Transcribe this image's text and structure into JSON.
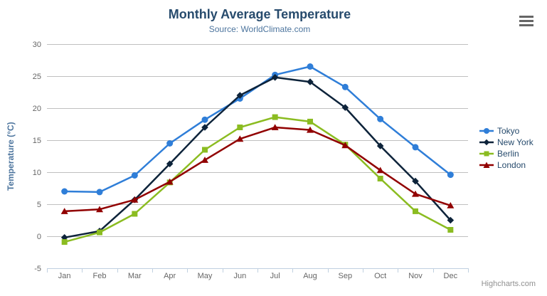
{
  "chart": {
    "credits": "Highcharts.com",
    "menu_icon": "hamburger-icon"
  },
  "theme": {
    "background": "#ffffff",
    "title_color": "#274b6d",
    "subtitle_color": "#4d759e",
    "axis_label_color": "#666666",
    "axis_title_color": "#4d759e",
    "legend_text_color": "#274b6d",
    "grid_color": "#c0c0c0",
    "axis_line_color": "#c0d0e0",
    "credits_color": "#909090",
    "menu_icon_color": "#666666"
  },
  "chart_data": {
    "type": "line",
    "title": "Monthly Average Temperature",
    "subtitle": "Source: WorldClimate.com",
    "categories": [
      "Jan",
      "Feb",
      "Mar",
      "Apr",
      "May",
      "Jun",
      "Jul",
      "Aug",
      "Sep",
      "Oct",
      "Nov",
      "Dec"
    ],
    "series": [
      {
        "name": "Tokyo",
        "color": "#2f7ed8",
        "marker": "circle",
        "values": [
          7.0,
          6.9,
          9.5,
          14.5,
          18.2,
          21.5,
          25.2,
          26.5,
          23.3,
          18.3,
          13.9,
          9.6
        ]
      },
      {
        "name": "New York",
        "color": "#0d233a",
        "marker": "diamond",
        "values": [
          -0.2,
          0.8,
          5.7,
          11.3,
          17.0,
          22.0,
          24.8,
          24.1,
          20.1,
          14.1,
          8.6,
          2.5
        ]
      },
      {
        "name": "Berlin",
        "color": "#8bbc21",
        "marker": "square",
        "values": [
          -0.9,
          0.6,
          3.5,
          8.4,
          13.5,
          17.0,
          18.6,
          17.9,
          14.3,
          9.0,
          3.9,
          1.0
        ]
      },
      {
        "name": "London",
        "color": "#910000",
        "marker": "triangle",
        "values": [
          3.9,
          4.2,
          5.7,
          8.5,
          11.9,
          15.2,
          17.0,
          16.6,
          14.2,
          10.3,
          6.6,
          4.8
        ]
      }
    ],
    "xlabel": "",
    "ylabel": "Temperature (°C)",
    "ylim": [
      -5,
      30
    ],
    "ytick_interval": 5,
    "yticks": [
      -5,
      0,
      5,
      10,
      15,
      20,
      25,
      30
    ],
    "grid": true,
    "legend_position": "right-middle-vertical"
  }
}
